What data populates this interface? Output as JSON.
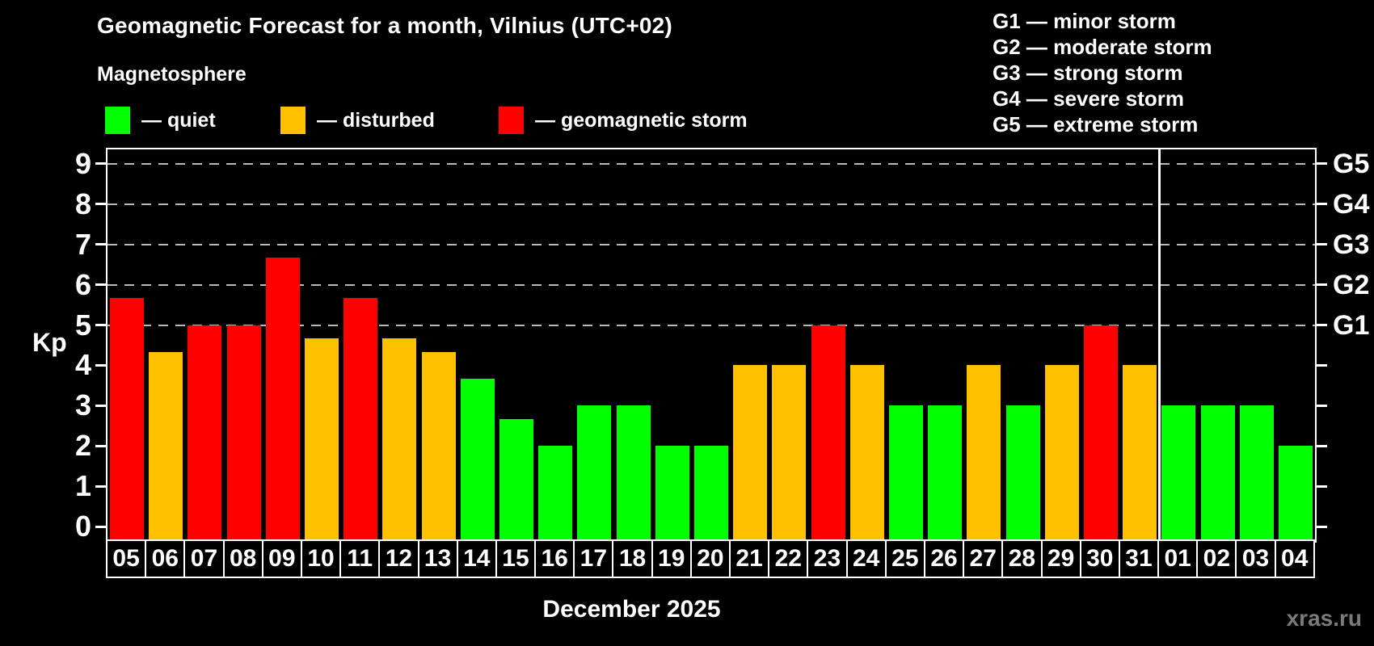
{
  "title": "Geomagnetic Forecast for a month, Vilnius (UTC+02)",
  "subtitle": "Magnetosphere",
  "legend": {
    "quiet": {
      "label": "— quiet",
      "color": "#00ff00"
    },
    "disturbed": {
      "label": "— disturbed",
      "color": "#ffc000"
    },
    "storm": {
      "label": "— geomagnetic storm",
      "color": "#ff0000"
    }
  },
  "g_legend": {
    "lines": [
      "G1 — minor storm",
      "G2 — moderate storm",
      "G3 — strong storm",
      "G4 — severe storm",
      "G5 — extreme storm"
    ]
  },
  "footer": {
    "month_label": "December 2025",
    "watermark": "xras.ru"
  },
  "chart_data": {
    "type": "bar",
    "title": "Geomagnetic Forecast for a month, Vilnius (UTC+02)",
    "subtitle": "Magnetosphere",
    "xlabel": "December 2025",
    "ylabel": "Kp",
    "ylim": [
      0,
      9
    ],
    "y_ticks": [
      0,
      1,
      2,
      3,
      4,
      5,
      6,
      7,
      8,
      9
    ],
    "grid": "dashed horizontal lines at Kp 5..9 only",
    "gridlines_at": [
      5,
      6,
      7,
      8,
      9
    ],
    "right_axis_labels": [
      {
        "kp": 5,
        "label": "G1"
      },
      {
        "kp": 6,
        "label": "G2"
      },
      {
        "kp": 7,
        "label": "G3"
      },
      {
        "kp": 8,
        "label": "G4"
      },
      {
        "kp": 9,
        "label": "G5"
      }
    ],
    "month_separator_after_index": 26,
    "categories": [
      "05",
      "06",
      "07",
      "08",
      "09",
      "10",
      "11",
      "12",
      "13",
      "14",
      "15",
      "16",
      "17",
      "18",
      "19",
      "20",
      "21",
      "22",
      "23",
      "24",
      "25",
      "26",
      "27",
      "28",
      "29",
      "30",
      "31",
      "01",
      "02",
      "03",
      "04"
    ],
    "values": [
      5.67,
      4.33,
      5.0,
      5.0,
      6.67,
      4.67,
      5.67,
      4.67,
      4.33,
      3.67,
      2.67,
      2.0,
      3.0,
      3.0,
      2.0,
      2.0,
      4.0,
      4.0,
      5.0,
      4.0,
      3.0,
      3.0,
      4.0,
      3.0,
      4.0,
      5.0,
      4.0,
      3.0,
      3.0,
      3.0,
      2.0
    ],
    "status": [
      "storm",
      "disturbed",
      "storm",
      "storm",
      "storm",
      "disturbed",
      "storm",
      "disturbed",
      "disturbed",
      "quiet",
      "quiet",
      "quiet",
      "quiet",
      "quiet",
      "quiet",
      "quiet",
      "disturbed",
      "disturbed",
      "storm",
      "disturbed",
      "quiet",
      "quiet",
      "disturbed",
      "quiet",
      "disturbed",
      "storm",
      "disturbed",
      "quiet",
      "quiet",
      "quiet",
      "quiet"
    ],
    "status_colors": {
      "quiet": "#00ff00",
      "disturbed": "#ffc000",
      "storm": "#ff0000"
    },
    "legend_position": "top-left",
    "background": "#000000"
  }
}
